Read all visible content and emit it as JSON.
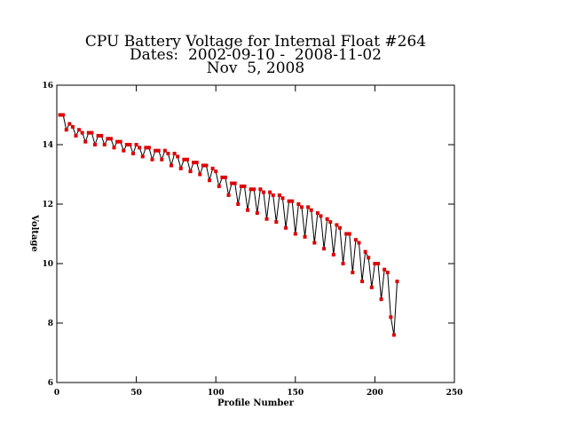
{
  "chart_data": {
    "type": "line",
    "title": [
      "CPU Battery Voltage for Internal Float #264",
      "Dates:  2002-09-10 -  2008-11-02",
      "Nov  5, 2008"
    ],
    "xlabel": "Profile Number",
    "ylabel": "Voltage",
    "marker_color": "#dd0000",
    "line_color": "#000000",
    "xlim": [
      0,
      250
    ],
    "xticks": [
      0,
      50,
      100,
      150,
      200,
      250
    ],
    "ylim": [
      6,
      16
    ],
    "yticks": [
      6,
      8,
      10,
      12,
      14,
      16
    ],
    "x": [
      2,
      4,
      6,
      8,
      10,
      12,
      14,
      16,
      18,
      20,
      22,
      24,
      26,
      28,
      30,
      32,
      34,
      36,
      38,
      40,
      42,
      44,
      46,
      48,
      50,
      52,
      54,
      56,
      58,
      60,
      62,
      64,
      66,
      68,
      70,
      72,
      74,
      76,
      78,
      80,
      82,
      84,
      86,
      88,
      90,
      92,
      94,
      96,
      98,
      100,
      102,
      104,
      106,
      108,
      110,
      112,
      114,
      116,
      118,
      120,
      122,
      124,
      126,
      128,
      130,
      132,
      134,
      136,
      138,
      140,
      142,
      144,
      146,
      148,
      150,
      152,
      154,
      156,
      158,
      160,
      162,
      164,
      166,
      168,
      170,
      172,
      174,
      176,
      178,
      180,
      182,
      184,
      186,
      188,
      190,
      192,
      194,
      196,
      198,
      200,
      202,
      204,
      206,
      208,
      210,
      212,
      214
    ],
    "values": [
      15.0,
      15.0,
      14.5,
      14.7,
      14.6,
      14.3,
      14.5,
      14.4,
      14.1,
      14.4,
      14.4,
      14.0,
      14.3,
      14.3,
      14.0,
      14.2,
      14.2,
      13.9,
      14.1,
      14.1,
      13.8,
      14.0,
      14.0,
      13.7,
      14.0,
      13.9,
      13.6,
      13.9,
      13.9,
      13.5,
      13.8,
      13.8,
      13.5,
      13.8,
      13.7,
      13.3,
      13.7,
      13.6,
      13.2,
      13.5,
      13.5,
      13.1,
      13.4,
      13.4,
      13.0,
      13.3,
      13.3,
      12.8,
      13.2,
      13.1,
      12.6,
      12.9,
      12.9,
      12.3,
      12.7,
      12.7,
      12.0,
      12.6,
      12.6,
      11.8,
      12.5,
      12.5,
      11.7,
      12.5,
      12.4,
      11.5,
      12.4,
      12.3,
      11.4,
      12.3,
      12.2,
      11.2,
      12.1,
      12.1,
      11.0,
      12.0,
      11.9,
      10.9,
      11.9,
      11.8,
      10.7,
      11.7,
      11.6,
      10.5,
      11.5,
      11.4,
      10.3,
      11.3,
      11.2,
      10.0,
      11.0,
      11.0,
      9.7,
      10.8,
      10.7,
      9.4,
      10.4,
      10.2,
      9.2,
      10.0,
      10.0,
      8.8,
      9.8,
      9.7,
      8.2,
      7.6,
      9.4
    ]
  }
}
